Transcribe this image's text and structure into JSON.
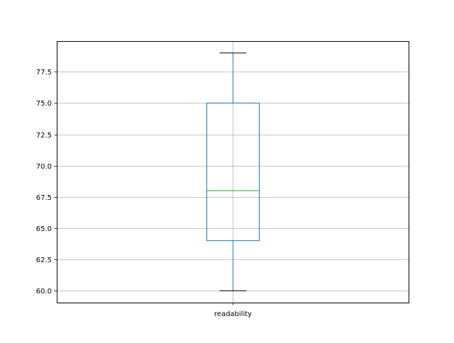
{
  "chart_data": {
    "type": "boxplot",
    "title": "",
    "xlabel": "",
    "ylabel": "",
    "categories": [
      "readability"
    ],
    "boxes": [
      {
        "label": "readability",
        "whisker_low": 60,
        "q1": 64,
        "median": 68,
        "q3": 75,
        "whisker_high": 79
      }
    ],
    "ylim": [
      59.05,
      79.95
    ],
    "yticks": [
      60.0,
      62.5,
      65.0,
      67.5,
      70.0,
      72.5,
      75.0,
      77.5
    ],
    "ytick_labels": [
      "60.0",
      "62.5",
      "65.0",
      "67.5",
      "70.0",
      "72.5",
      "75.0",
      "77.5"
    ],
    "grid": true,
    "colors": {
      "box": "#1f77b4",
      "median": "#2ca02c",
      "caps": "#000000",
      "grid": "#b0b0b0"
    }
  }
}
